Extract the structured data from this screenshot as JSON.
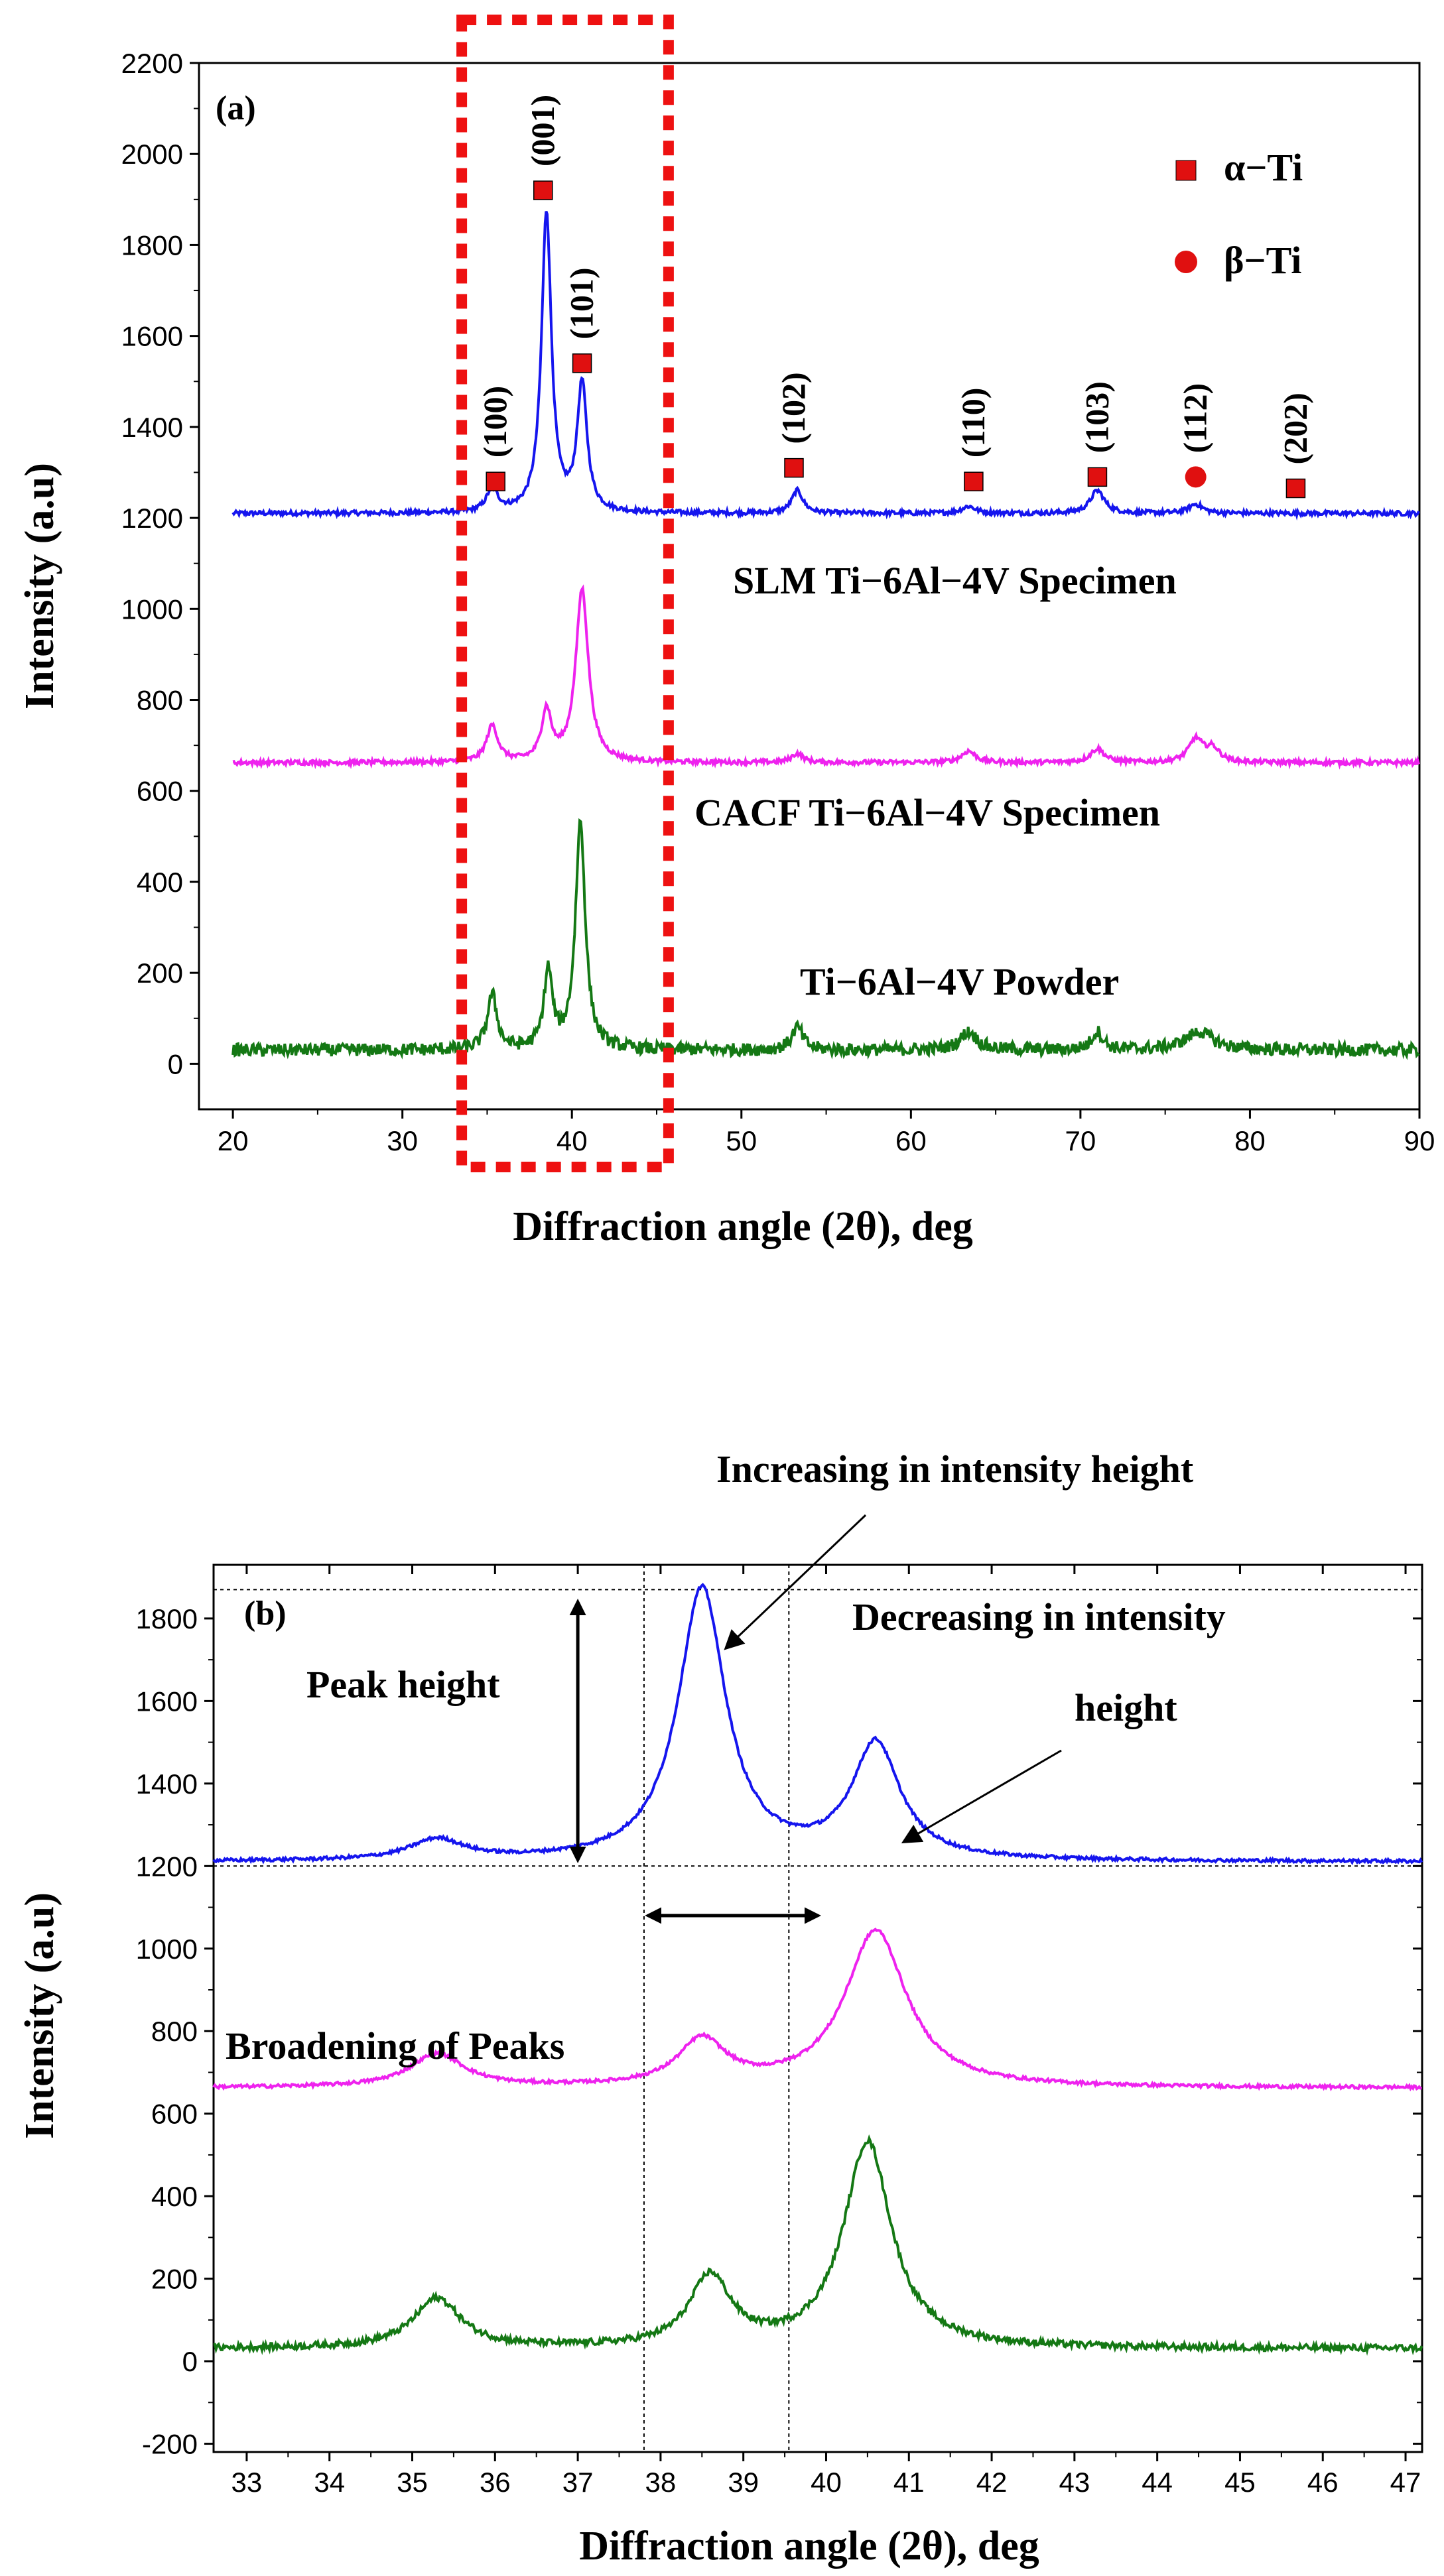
{
  "colors": {
    "slm": "#1515ee",
    "cacf": "#ee22ee",
    "powder": "#147814",
    "marker": "#e01010",
    "highlight_box": "#ee1111"
  },
  "chart_data": [
    {
      "id": "a",
      "type": "line",
      "panel_label": "(a)",
      "xlabel": "Diffraction angle (2θ), deg",
      "ylabel": "Intensity (a.u)",
      "xlim": [
        18,
        90
      ],
      "ylim": [
        -100,
        2200
      ],
      "x_ticks": [
        20,
        30,
        40,
        50,
        60,
        70,
        80,
        90
      ],
      "y_ticks": [
        0,
        200,
        400,
        600,
        800,
        1000,
        1200,
        1400,
        1600,
        1800,
        2000,
        2200
      ],
      "series": [
        {
          "name": "SLM Ti−6Al−4V Specimen",
          "color_key": "slm",
          "baseline": 1210,
          "peaks": [
            [
              35.3,
              50,
              0.4
            ],
            [
              38.5,
              660,
              0.35
            ],
            [
              40.6,
              280,
              0.35
            ],
            [
              53.3,
              50,
              0.4
            ],
            [
              63.4,
              15,
              0.5
            ],
            [
              71.0,
              50,
              0.5
            ],
            [
              76.8,
              20,
              0.5
            ]
          ]
        },
        {
          "name": "CACF Ti−6Al−4V Specimen",
          "color_key": "cacf",
          "baseline": 662,
          "peaks": [
            [
              35.3,
              80,
              0.4
            ],
            [
              38.5,
              110,
              0.35
            ],
            [
              40.6,
              380,
              0.45
            ],
            [
              53.3,
              20,
              0.4
            ],
            [
              63.4,
              25,
              0.5
            ],
            [
              71.0,
              30,
              0.5
            ],
            [
              76.8,
              50,
              0.5
            ],
            [
              77.8,
              30,
              0.5
            ]
          ]
        },
        {
          "name": "Ti−6Al−4V Powder",
          "color_key": "powder",
          "baseline": 30,
          "peaks": [
            [
              35.3,
              120,
              0.35
            ],
            [
              38.6,
              170,
              0.3
            ],
            [
              40.5,
              500,
              0.35
            ],
            [
              53.3,
              50,
              0.4
            ],
            [
              63.4,
              40,
              0.6
            ],
            [
              71.0,
              40,
              0.4
            ],
            [
              77.0,
              40,
              1.0
            ]
          ]
        }
      ],
      "series_labels": [
        "SLM Ti−6Al−4V Specimen",
        "CACF Ti−6Al−4V Specimen",
        "Ti−6Al−4V Powder"
      ],
      "peak_labels": [
        {
          "hkl": "(100)",
          "x": 35.5,
          "y": 1280,
          "marker": "square"
        },
        {
          "hkl": "(001)",
          "x": 38.3,
          "y": 1920,
          "marker": "square"
        },
        {
          "hkl": "(101)",
          "x": 40.6,
          "y": 1540,
          "marker": "square"
        },
        {
          "hkl": "(102)",
          "x": 53.1,
          "y": 1310,
          "marker": "square"
        },
        {
          "hkl": "(110)",
          "x": 63.7,
          "y": 1280,
          "marker": "square"
        },
        {
          "hkl": "(103)",
          "x": 71.0,
          "y": 1290,
          "marker": "square"
        },
        {
          "hkl": "(112)",
          "x": 76.8,
          "y": 1290,
          "marker": "circle"
        },
        {
          "hkl": "(202)",
          "x": 82.7,
          "y": 1265,
          "marker": "square"
        }
      ],
      "legend": [
        {
          "symbol": "square",
          "label": "α−Ti"
        },
        {
          "symbol": "circle",
          "label": "β−Ti"
        }
      ],
      "highlight_range": [
        33.5,
        45.7
      ]
    },
    {
      "id": "b",
      "type": "line",
      "panel_label": "(b)",
      "xlabel": "Diffraction angle (2θ), deg",
      "ylabel": "Intensity (a.u)",
      "xlim": [
        32.6,
        47.2
      ],
      "ylim": [
        -220,
        1930
      ],
      "x_ticks": [
        33,
        34,
        35,
        36,
        37,
        38,
        39,
        40,
        41,
        42,
        43,
        44,
        45,
        46,
        47
      ],
      "y_ticks": [
        -200,
        0,
        200,
        400,
        600,
        800,
        1000,
        1200,
        1400,
        1600,
        1800
      ],
      "series_ref": [
        "SLM Ti−6Al−4V Specimen",
        "CACF Ti−6Al−4V Specimen",
        "Ti−6Al−4V Powder"
      ],
      "reference_lines": {
        "y": [
          1870,
          1200
        ],
        "x": [
          37.8,
          39.55
        ]
      },
      "annotations": {
        "increasing": "Increasing in intensity height",
        "decreasing_1": "Decreasing in intensity",
        "decreasing_2": "height",
        "peak_height": "Peak height",
        "broadening": "Broadening of Peaks"
      }
    }
  ]
}
